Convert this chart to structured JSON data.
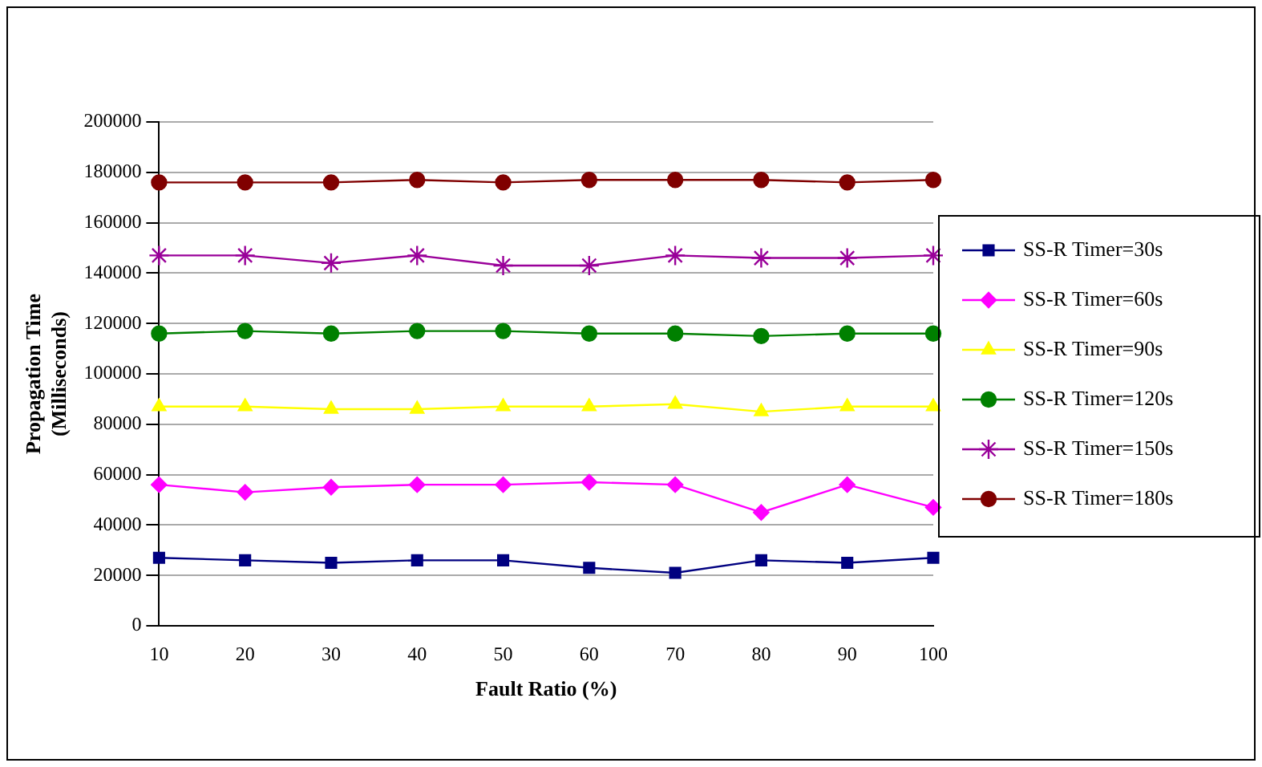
{
  "chart_data": {
    "type": "line",
    "xlabel": "Fault Ratio (%)",
    "ylabel": "Propagation Time\n(Milliseconds)",
    "categories": [
      "10",
      "20",
      "30",
      "40",
      "50",
      "60",
      "70",
      "80",
      "90",
      "100"
    ],
    "ylim": [
      0,
      200000
    ],
    "yticks": [
      0,
      20000,
      40000,
      60000,
      80000,
      100000,
      120000,
      140000,
      160000,
      180000,
      200000
    ],
    "grid": "y",
    "legend": "right",
    "series": [
      {
        "name": "SS-R Timer=30s",
        "color": "#000080",
        "marker": "square",
        "values": [
          27000,
          26000,
          25000,
          26000,
          26000,
          23000,
          21000,
          26000,
          25000,
          27000
        ]
      },
      {
        "name": "SS-R Timer=60s",
        "color": "#ff00ff",
        "marker": "diamond",
        "values": [
          56000,
          53000,
          55000,
          56000,
          56000,
          57000,
          56000,
          45000,
          56000,
          47000
        ]
      },
      {
        "name": "SS-R Timer=90s",
        "color": "#ffff00",
        "marker": "triangle",
        "values": [
          87000,
          87000,
          86000,
          86000,
          87000,
          87000,
          88000,
          85000,
          87000,
          87000
        ]
      },
      {
        "name": "SS-R Timer=120s",
        "color": "#008000",
        "marker": "circle",
        "values": [
          116000,
          117000,
          116000,
          117000,
          117000,
          116000,
          116000,
          115000,
          116000,
          116000
        ]
      },
      {
        "name": "SS-R Timer=150s",
        "color": "#990099",
        "marker": "cross",
        "values": [
          147000,
          147000,
          144000,
          147000,
          143000,
          143000,
          147000,
          146000,
          146000,
          147000
        ]
      },
      {
        "name": "SS-R Timer=180s",
        "color": "#800000",
        "marker": "circle",
        "values": [
          176000,
          176000,
          176000,
          177000,
          176000,
          177000,
          177000,
          177000,
          176000,
          177000
        ]
      }
    ]
  }
}
